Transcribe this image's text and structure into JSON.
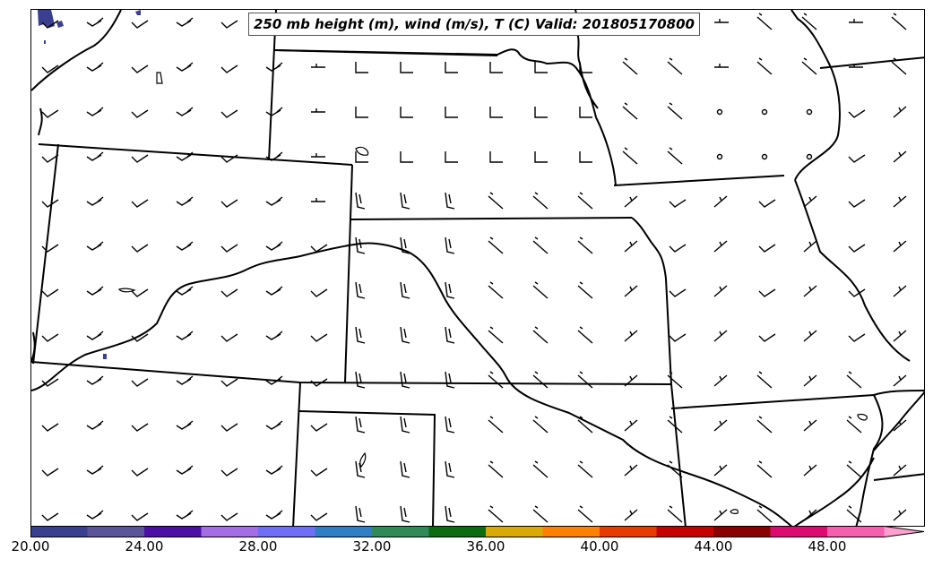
{
  "map": {
    "title": "250 mb height (m), wind (m/s), T (C) Valid: 201805170800",
    "line_color": "#000000",
    "frame_color": "#000000"
  },
  "colorbar": {
    "colors": [
      "#3b3f8f",
      "#5a5499",
      "#4b0fa5",
      "#a36de6",
      "#6f6ef7",
      "#2f7fc6",
      "#2e8b57",
      "#0a6b10",
      "#d9aa05",
      "#ff7f00",
      "#e83b00",
      "#c40000",
      "#8b0000",
      "#dd0a6f",
      "#f55fad",
      "#ff9fd0"
    ],
    "tick_labels": [
      "20.00",
      "24.00",
      "28.00",
      "32.00",
      "36.00",
      "40.00",
      "44.00",
      "48.00"
    ]
  },
  "wind_barbs": {
    "styles": [
      "long",
      "calm",
      "half",
      "double",
      "double-steep"
    ]
  }
}
